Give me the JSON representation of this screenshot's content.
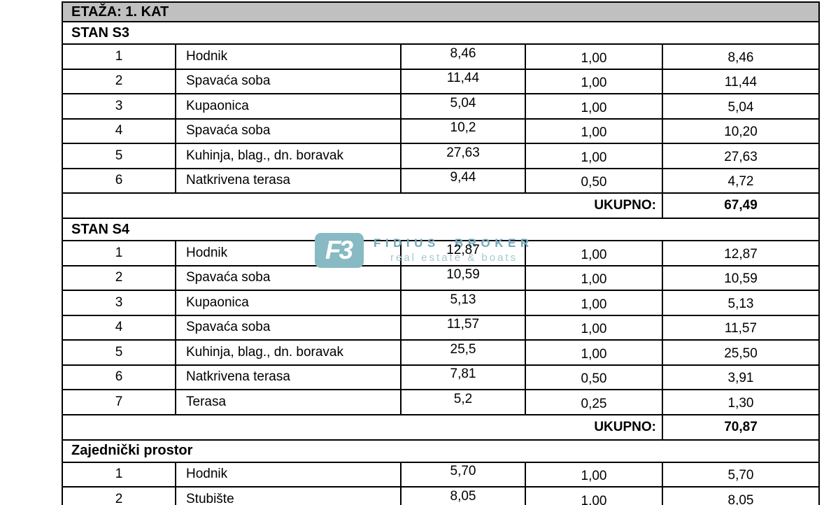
{
  "floor_header": "ETAŽA: 1. KAT",
  "totals_label": "UKUPNO:",
  "sections": [
    {
      "name": "STAN S3",
      "rows": [
        {
          "num": "1",
          "label": "Hodnik",
          "area": "8,46",
          "coef": "1,00",
          "value": "8,46"
        },
        {
          "num": "2",
          "label": "Spavaća soba",
          "area": "11,44",
          "coef": "1,00",
          "value": "11,44"
        },
        {
          "num": "3",
          "label": "Kupaonica",
          "area": "5,04",
          "coef": "1,00",
          "value": "5,04"
        },
        {
          "num": "4",
          "label": "Spavaća soba",
          "area": "10,2",
          "coef": "1,00",
          "value": "10,20"
        },
        {
          "num": "5",
          "label": "Kuhinja, blag., dn. boravak",
          "area": "27,63",
          "coef": "1,00",
          "value": "27,63"
        },
        {
          "num": "6",
          "label": "Natkrivena terasa",
          "area": "9,44",
          "coef": "0,50",
          "value": "4,72"
        }
      ],
      "total": "67,49"
    },
    {
      "name": "STAN S4",
      "rows": [
        {
          "num": "1",
          "label": "Hodnik",
          "area": "12,87",
          "coef": "1,00",
          "value": "12,87"
        },
        {
          "num": "2",
          "label": "Spavaća soba",
          "area": "10,59",
          "coef": "1,00",
          "value": "10,59"
        },
        {
          "num": "3",
          "label": "Kupaonica",
          "area": "5,13",
          "coef": "1,00",
          "value": "5,13"
        },
        {
          "num": "4",
          "label": "Spavaća soba",
          "area": "11,57",
          "coef": "1,00",
          "value": "11,57"
        },
        {
          "num": "5",
          "label": "Kuhinja, blag., dn. boravak",
          "area": "25,5",
          "coef": "1,00",
          "value": "25,50"
        },
        {
          "num": "6",
          "label": "Natkrivena terasa",
          "area": "7,81",
          "coef": "0,50",
          "value": "3,91"
        },
        {
          "num": "7",
          "label": "Terasa",
          "area": "5,2",
          "coef": "0,25",
          "value": "1,30"
        }
      ],
      "total": "70,87"
    },
    {
      "name": "Zajednički prostor",
      "rows": [
        {
          "num": "1",
          "label": "Hodnik",
          "area": "5,70",
          "coef": "1,00",
          "value": "5,70"
        },
        {
          "num": "2",
          "label": "Stubište",
          "area": "8,05",
          "coef": "1,00",
          "value": "8,05"
        }
      ],
      "total": null
    }
  ],
  "watermark": {
    "icon_text": "F3",
    "brand": "FIDIUS BROKER",
    "tagline": "real estate & boats"
  },
  "colors": {
    "header_bg": "#c0c0c0",
    "border": "#000000",
    "wm_icon_bg": "#87bac3",
    "wm_brand": "#72a9bb",
    "wm_tagline": "#a6c7d0"
  }
}
